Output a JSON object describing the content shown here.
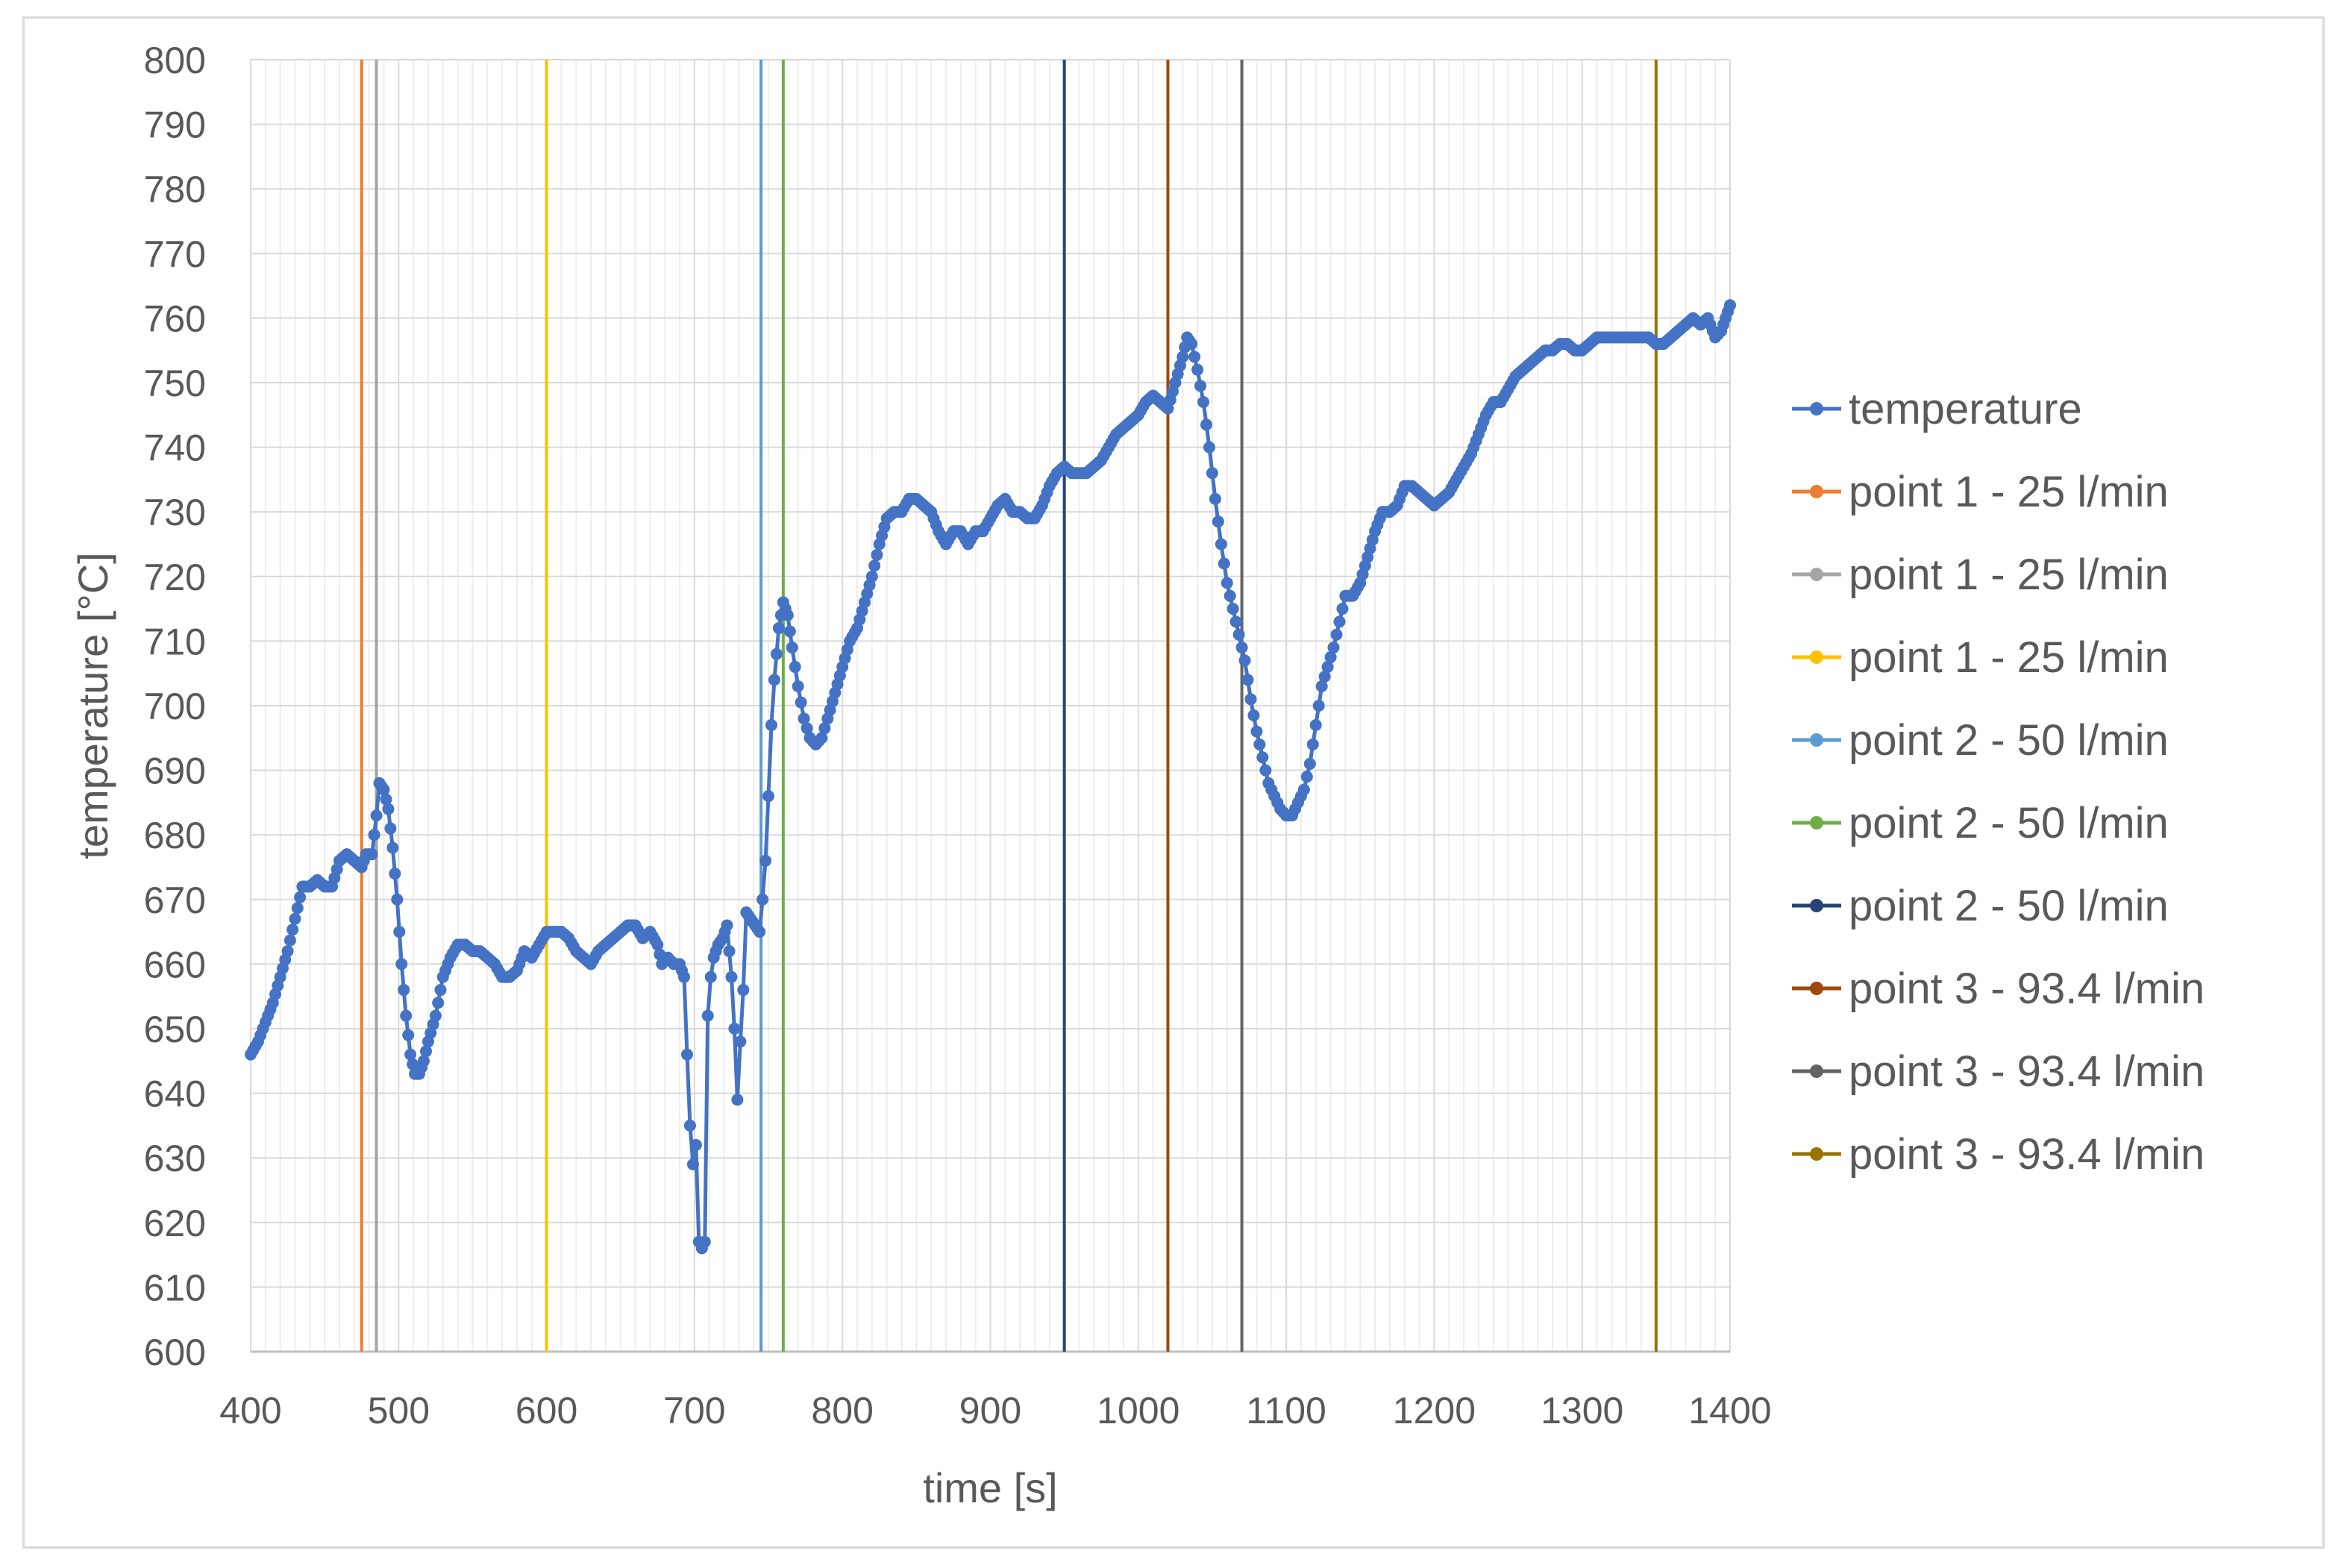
{
  "chart_data": {
    "type": "line",
    "title": "",
    "xlabel": "time [s]",
    "ylabel": "temperature [°C]",
    "xlim": [
      400,
      1400
    ],
    "ylim": [
      600,
      800
    ],
    "x_ticks": [
      400,
      500,
      600,
      700,
      800,
      900,
      1000,
      1100,
      1200,
      1300,
      1400
    ],
    "y_ticks": [
      600,
      610,
      620,
      630,
      640,
      650,
      660,
      670,
      680,
      690,
      700,
      710,
      720,
      730,
      740,
      750,
      760,
      770,
      780,
      790,
      800
    ],
    "grid": true,
    "legend_position": "right",
    "series": [
      {
        "name": "temperature",
        "color": "#4472c4",
        "marker": "circle",
        "points": [
          [
            400,
            646
          ],
          [
            405,
            648
          ],
          [
            410,
            651
          ],
          [
            415,
            654
          ],
          [
            420,
            658
          ],
          [
            425,
            662
          ],
          [
            430,
            667
          ],
          [
            435,
            672
          ],
          [
            440,
            672
          ],
          [
            445,
            673
          ],
          [
            450,
            672
          ],
          [
            455,
            672
          ],
          [
            460,
            676
          ],
          [
            465,
            677
          ],
          [
            470,
            676
          ],
          [
            475,
            675
          ],
          [
            478,
            677
          ],
          [
            482,
            677
          ],
          [
            485,
            683
          ],
          [
            487,
            688
          ],
          [
            490,
            687
          ],
          [
            493,
            684
          ],
          [
            496,
            678
          ],
          [
            499,
            670
          ],
          [
            502,
            660
          ],
          [
            505,
            652
          ],
          [
            508,
            646
          ],
          [
            511,
            643
          ],
          [
            514,
            643
          ],
          [
            517,
            645
          ],
          [
            520,
            648
          ],
          [
            525,
            652
          ],
          [
            530,
            658
          ],
          [
            535,
            661
          ],
          [
            540,
            663
          ],
          [
            545,
            663
          ],
          [
            550,
            662
          ],
          [
            555,
            662
          ],
          [
            560,
            661
          ],
          [
            565,
            660
          ],
          [
            570,
            658
          ],
          [
            575,
            658
          ],
          [
            580,
            659
          ],
          [
            585,
            662
          ],
          [
            590,
            661
          ],
          [
            595,
            663
          ],
          [
            600,
            665
          ],
          [
            605,
            665
          ],
          [
            610,
            665
          ],
          [
            615,
            664
          ],
          [
            620,
            662
          ],
          [
            625,
            661
          ],
          [
            630,
            660
          ],
          [
            635,
            662
          ],
          [
            640,
            663
          ],
          [
            645,
            664
          ],
          [
            650,
            665
          ],
          [
            655,
            666
          ],
          [
            660,
            666
          ],
          [
            665,
            664
          ],
          [
            670,
            665
          ],
          [
            675,
            663
          ],
          [
            678,
            660
          ],
          [
            682,
            661
          ],
          [
            686,
            660
          ],
          [
            690,
            660
          ],
          [
            693,
            658
          ],
          [
            695,
            646
          ],
          [
            697,
            635
          ],
          [
            699,
            629
          ],
          [
            701,
            632
          ],
          [
            703,
            617
          ],
          [
            705,
            616
          ],
          [
            707,
            617
          ],
          [
            709,
            652
          ],
          [
            711,
            658
          ],
          [
            713,
            661
          ],
          [
            716,
            663
          ],
          [
            719,
            664
          ],
          [
            722,
            666
          ],
          [
            725,
            658
          ],
          [
            727,
            650
          ],
          [
            729,
            639
          ],
          [
            731,
            648
          ],
          [
            733,
            656
          ],
          [
            735,
            668
          ],
          [
            738,
            667
          ],
          [
            741,
            666
          ],
          [
            744,
            665
          ],
          [
            746,
            670
          ],
          [
            748,
            676
          ],
          [
            750,
            686
          ],
          [
            752,
            697
          ],
          [
            754,
            704
          ],
          [
            757,
            712
          ],
          [
            760,
            716
          ],
          [
            763,
            714
          ],
          [
            766,
            709
          ],
          [
            770,
            703
          ],
          [
            774,
            698
          ],
          [
            778,
            695
          ],
          [
            782,
            694
          ],
          [
            786,
            695
          ],
          [
            790,
            698
          ],
          [
            795,
            702
          ],
          [
            800,
            706
          ],
          [
            805,
            710
          ],
          [
            810,
            712
          ],
          [
            815,
            716
          ],
          [
            820,
            720
          ],
          [
            825,
            725
          ],
          [
            830,
            729
          ],
          [
            835,
            730
          ],
          [
            840,
            730
          ],
          [
            845,
            732
          ],
          [
            850,
            732
          ],
          [
            855,
            731
          ],
          [
            860,
            730
          ],
          [
            865,
            727
          ],
          [
            870,
            725
          ],
          [
            875,
            727
          ],
          [
            880,
            727
          ],
          [
            885,
            725
          ],
          [
            890,
            727
          ],
          [
            895,
            727
          ],
          [
            900,
            729
          ],
          [
            905,
            731
          ],
          [
            910,
            732
          ],
          [
            915,
            730
          ],
          [
            920,
            730
          ],
          [
            925,
            729
          ],
          [
            930,
            729
          ],
          [
            935,
            731
          ],
          [
            940,
            734
          ],
          [
            945,
            736
          ],
          [
            950,
            737
          ],
          [
            955,
            736
          ],
          [
            960,
            736
          ],
          [
            965,
            736
          ],
          [
            970,
            737
          ],
          [
            975,
            738
          ],
          [
            980,
            740
          ],
          [
            985,
            742
          ],
          [
            990,
            743
          ],
          [
            995,
            744
          ],
          [
            1000,
            745
          ],
          [
            1005,
            747
          ],
          [
            1010,
            748
          ],
          [
            1015,
            747
          ],
          [
            1020,
            746
          ],
          [
            1025,
            750
          ],
          [
            1030,
            754
          ],
          [
            1033,
            757
          ],
          [
            1036,
            756
          ],
          [
            1040,
            752
          ],
          [
            1044,
            747
          ],
          [
            1048,
            740
          ],
          [
            1052,
            732
          ],
          [
            1056,
            725
          ],
          [
            1060,
            719
          ],
          [
            1064,
            715
          ],
          [
            1068,
            711
          ],
          [
            1072,
            707
          ],
          [
            1076,
            701
          ],
          [
            1080,
            696
          ],
          [
            1084,
            692
          ],
          [
            1088,
            688
          ],
          [
            1092,
            686
          ],
          [
            1096,
            684
          ],
          [
            1100,
            683
          ],
          [
            1104,
            683
          ],
          [
            1108,
            685
          ],
          [
            1112,
            687
          ],
          [
            1116,
            691
          ],
          [
            1120,
            697
          ],
          [
            1124,
            703
          ],
          [
            1128,
            706
          ],
          [
            1132,
            709
          ],
          [
            1136,
            713
          ],
          [
            1140,
            717
          ],
          [
            1145,
            717
          ],
          [
            1150,
            719
          ],
          [
            1155,
            723
          ],
          [
            1160,
            727
          ],
          [
            1165,
            730
          ],
          [
            1170,
            730
          ],
          [
            1175,
            731
          ],
          [
            1180,
            734
          ],
          [
            1185,
            734
          ],
          [
            1190,
            733
          ],
          [
            1195,
            732
          ],
          [
            1200,
            731
          ],
          [
            1205,
            732
          ],
          [
            1210,
            733
          ],
          [
            1215,
            735
          ],
          [
            1220,
            737
          ],
          [
            1225,
            739
          ],
          [
            1230,
            742
          ],
          [
            1235,
            745
          ],
          [
            1240,
            747
          ],
          [
            1245,
            747
          ],
          [
            1250,
            749
          ],
          [
            1255,
            751
          ],
          [
            1260,
            752
          ],
          [
            1265,
            753
          ],
          [
            1270,
            754
          ],
          [
            1275,
            755
          ],
          [
            1280,
            755
          ],
          [
            1285,
            756
          ],
          [
            1290,
            756
          ],
          [
            1295,
            755
          ],
          [
            1300,
            755
          ],
          [
            1305,
            756
          ],
          [
            1310,
            757
          ],
          [
            1315,
            757
          ],
          [
            1320,
            757
          ],
          [
            1325,
            757
          ],
          [
            1330,
            757
          ],
          [
            1335,
            757
          ],
          [
            1340,
            757
          ],
          [
            1345,
            757
          ],
          [
            1350,
            756
          ],
          [
            1355,
            756
          ],
          [
            1360,
            757
          ],
          [
            1365,
            758
          ],
          [
            1370,
            759
          ],
          [
            1375,
            760
          ],
          [
            1380,
            759
          ],
          [
            1385,
            760
          ],
          [
            1390,
            757
          ],
          [
            1394,
            758
          ],
          [
            1397,
            760
          ],
          [
            1400,
            762
          ]
        ]
      }
    ],
    "vertical_lines": [
      {
        "name": "point 1 - 25 l/min",
        "x": 475,
        "color": "#ed7d31"
      },
      {
        "name": "point 1 - 25 l/min",
        "x": 485,
        "color": "#a5a5a5"
      },
      {
        "name": "point 1 - 25 l/min",
        "x": 600,
        "color": "#ffc000"
      },
      {
        "name": "point 2 - 50 l/min",
        "x": 745,
        "color": "#5b9bd5"
      },
      {
        "name": "point 2 - 50 l/min",
        "x": 760,
        "color": "#70ad47"
      },
      {
        "name": "point 2 - 50 l/min",
        "x": 950,
        "color": "#264478"
      },
      {
        "name": "point 3 - 93.4 l/min",
        "x": 1020,
        "color": "#9e480e"
      },
      {
        "name": "point 3 - 93.4 l/min",
        "x": 1070,
        "color": "#636363"
      },
      {
        "name": "point 3 - 93.4 l/min",
        "x": 1350,
        "color": "#997300"
      }
    ]
  }
}
